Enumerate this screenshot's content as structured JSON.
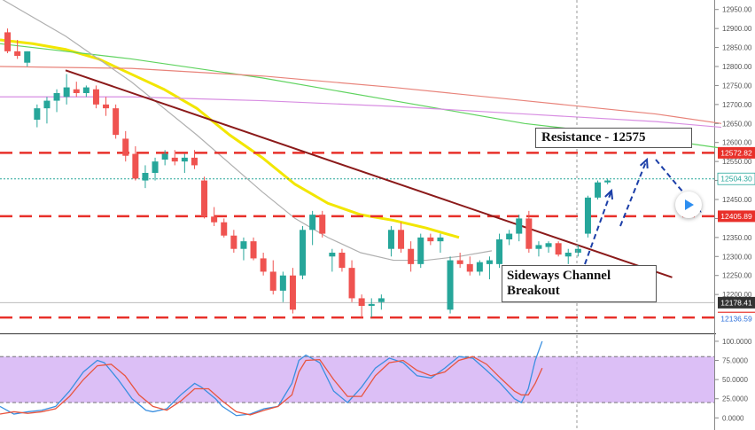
{
  "chart_data": [
    {
      "type": "candlestick",
      "title": "",
      "ylim": [
        12100,
        12975
      ],
      "y_ticks": [
        12950,
        12900,
        12850,
        12800,
        12750,
        12700,
        12650,
        12600,
        12550,
        12500,
        12450,
        12400,
        12350,
        12300,
        12250,
        12200
      ],
      "y_tick_labels": [
        "12950.00",
        "12900.00",
        "12850.00",
        "12800.00",
        "12750.00",
        "12700.00",
        "12650.00",
        "12600.00",
        "12550.00",
        "12500.00",
        "12450.00",
        "12400.00",
        "12350.00",
        "12300.00",
        "12250.00",
        "12200.00"
      ],
      "candles": [
        [
          12890,
          12900,
          12835,
          12840
        ],
        [
          12840,
          12870,
          12820,
          12828
        ],
        [
          12810,
          12840,
          12800,
          12840
        ],
        [
          12660,
          12700,
          12640,
          12690
        ],
        [
          12690,
          12720,
          12650,
          12710
        ],
        [
          12710,
          12740,
          12680,
          12730
        ],
        [
          12720,
          12780,
          12700,
          12745
        ],
        [
          12740,
          12760,
          12720,
          12730
        ],
        [
          12730,
          12750,
          12720,
          12745
        ],
        [
          12740,
          12750,
          12690,
          12700
        ],
        [
          12700,
          12720,
          12670,
          12690
        ],
        [
          12690,
          12700,
          12610,
          12620
        ],
        [
          12610,
          12630,
          12550,
          12565
        ],
        [
          12570,
          12590,
          12500,
          12505
        ],
        [
          12500,
          12540,
          12480,
          12520
        ],
        [
          12520,
          12560,
          12500,
          12550
        ],
        [
          12555,
          12580,
          12540,
          12570
        ],
        [
          12560,
          12580,
          12540,
          12550
        ],
        [
          12550,
          12570,
          12520,
          12560
        ],
        [
          12560,
          12580,
          12530,
          12540
        ],
        [
          12500,
          12510,
          12400,
          12405
        ],
        [
          12405,
          12430,
          12380,
          12390
        ],
        [
          12390,
          12400,
          12350,
          12355
        ],
        [
          12355,
          12370,
          12310,
          12320
        ],
        [
          12320,
          12350,
          12290,
          12340
        ],
        [
          12340,
          12350,
          12290,
          12295
        ],
        [
          12295,
          12310,
          12250,
          12260
        ],
        [
          12260,
          12290,
          12200,
          12210
        ],
        [
          12210,
          12260,
          12180,
          12250
        ],
        [
          12250,
          12270,
          12150,
          12160
        ],
        [
          12250,
          12380,
          12240,
          12370
        ],
        [
          12370,
          12420,
          12330,
          12410
        ],
        [
          12410,
          12420,
          12350,
          12360
        ],
        [
          12300,
          12320,
          12260,
          12310
        ],
        [
          12310,
          12320,
          12260,
          12270
        ],
        [
          12270,
          12290,
          12180,
          12190
        ],
        [
          12190,
          12200,
          12140,
          12170
        ],
        [
          12170,
          12190,
          12140,
          12175
        ],
        [
          12180,
          12200,
          12160,
          12190
        ],
        [
          12320,
          12380,
          12300,
          12370
        ],
        [
          12370,
          12390,
          12310,
          12320
        ],
        [
          12320,
          12340,
          12260,
          12280
        ],
        [
          12280,
          12360,
          12270,
          12350
        ],
        [
          12350,
          12360,
          12330,
          12340
        ],
        [
          12340,
          12360,
          12310,
          12350
        ],
        [
          12160,
          12300,
          12150,
          12290
        ],
        [
          12290,
          12310,
          12270,
          12280
        ],
        [
          12280,
          12300,
          12250,
          12260
        ],
        [
          12260,
          12290,
          12250,
          12285
        ],
        [
          12280,
          12300,
          12240,
          12290
        ],
        [
          12280,
          12360,
          12270,
          12345
        ],
        [
          12345,
          12370,
          12330,
          12360
        ],
        [
          12360,
          12410,
          12340,
          12400
        ],
        [
          12400,
          12420,
          12310,
          12320
        ],
        [
          12320,
          12340,
          12300,
          12330
        ],
        [
          12325,
          12340,
          12310,
          12335
        ],
        [
          12335,
          12340,
          12300,
          12305
        ],
        [
          12300,
          12320,
          12280,
          12310
        ],
        [
          12310,
          12330,
          12300,
          12320
        ],
        [
          12360,
          12460,
          12350,
          12455
        ],
        [
          12455,
          12500,
          12450,
          12495
        ],
        [
          12495,
          12505,
          12490,
          12500
        ]
      ],
      "moving_averages": [
        {
          "color": "#f2e600",
          "values": [
            [
              0,
              12870
            ],
            [
              10,
              12860
            ],
            [
              20,
              12845
            ],
            [
              30,
              12820
            ],
            [
              40,
              12780
            ],
            [
              50,
              12740
            ],
            [
              60,
              12690
            ],
            [
              70,
              12620
            ],
            [
              80,
              12560
            ],
            [
              90,
              12490
            ],
            [
              100,
              12440
            ],
            [
              110,
              12410
            ],
            [
              120,
              12395
            ],
            [
              130,
              12375
            ],
            [
              140,
              12350
            ]
          ]
        },
        {
          "color": "#5fd35f",
          "values": [
            [
              0,
              12860
            ],
            [
              40,
              12820
            ],
            [
              80,
              12770
            ],
            [
              120,
              12710
            ],
            [
              160,
              12650
            ],
            [
              200,
              12610
            ],
            [
              220,
              12585
            ]
          ]
        },
        {
          "color": "#e8837a",
          "values": [
            [
              0,
              12800
            ],
            [
              40,
              12795
            ],
            [
              80,
              12775
            ],
            [
              120,
              12745
            ],
            [
              160,
              12710
            ],
            [
              200,
              12675
            ],
            [
              220,
              12650
            ]
          ]
        },
        {
          "color": "#d88ee2",
          "values": [
            [
              0,
              12720
            ],
            [
              40,
              12720
            ],
            [
              80,
              12710
            ],
            [
              120,
              12695
            ],
            [
              160,
              12675
            ],
            [
              200,
              12655
            ],
            [
              220,
              12640
            ]
          ]
        },
        {
          "color": "#b0b0b0",
          "values": [
            [
              0,
              12980
            ],
            [
              20,
              12880
            ],
            [
              40,
              12760
            ],
            [
              60,
              12620
            ],
            [
              80,
              12470
            ],
            [
              90,
              12400
            ],
            [
              100,
              12350
            ],
            [
              110,
              12310
            ],
            [
              120,
              12290
            ],
            [
              130,
              12290
            ],
            [
              140,
              12300
            ],
            [
              150,
              12315
            ]
          ]
        }
      ],
      "horizontal_levels": [
        {
          "value": 12572.82,
          "label": "12572.82",
          "color": "#e8302a",
          "style": "dashed"
        },
        {
          "value": 12504.3,
          "label": "12504.30",
          "color": "#26a69a",
          "style": "dotted"
        },
        {
          "value": 12405.89,
          "label": "12405.89",
          "color": "#e8302a",
          "style": "dashed"
        },
        {
          "value": 12178.41,
          "label": "12178.41",
          "color": "#444444",
          "style": "thin"
        },
        {
          "value": 12139.35,
          "label": "12139.35",
          "color": "#e8302a",
          "style": "dashed"
        },
        {
          "value": 12136.59,
          "label": "12136.59",
          "color": "#2a6fdb",
          "style": "label-only"
        }
      ],
      "trend_line": {
        "color": "#8b1a1a",
        "from": [
          20,
          12790
        ],
        "to": [
          205,
          12245
        ]
      },
      "annotations": [
        "Resistance - 12575",
        "Sideways Channel Breakout"
      ]
    },
    {
      "type": "line",
      "title": "",
      "ylim": [
        -10,
        108
      ],
      "y_ticks": [
        100,
        75,
        50,
        25,
        0
      ],
      "y_tick_labels": [
        "100.0000",
        "75.0000",
        "50.0000",
        "25.0000",
        "0.0000"
      ],
      "band": [
        20,
        80
      ],
      "series": [
        {
          "color": "#3a8fe0",
          "values": [
            [
              0,
              15
            ],
            [
              4,
              5
            ],
            [
              8,
              8
            ],
            [
              12,
              10
            ],
            [
              16,
              15
            ],
            [
              20,
              35
            ],
            [
              24,
              60
            ],
            [
              28,
              75
            ],
            [
              30,
              72
            ],
            [
              34,
              50
            ],
            [
              38,
              25
            ],
            [
              42,
              10
            ],
            [
              44,
              8
            ],
            [
              48,
              12
            ],
            [
              52,
              30
            ],
            [
              56,
              45
            ],
            [
              58,
              40
            ],
            [
              62,
              25
            ],
            [
              64,
              15
            ],
            [
              68,
              3
            ],
            [
              72,
              5
            ],
            [
              76,
              12
            ],
            [
              80,
              15
            ],
            [
              84,
              45
            ],
            [
              86,
              75
            ],
            [
              88,
              82
            ],
            [
              92,
              72
            ],
            [
              96,
              35
            ],
            [
              100,
              20
            ],
            [
              104,
              40
            ],
            [
              108,
              65
            ],
            [
              112,
              78
            ],
            [
              116,
              72
            ],
            [
              120,
              55
            ],
            [
              124,
              52
            ],
            [
              128,
              65
            ],
            [
              132,
              80
            ],
            [
              136,
              78
            ],
            [
              140,
              62
            ],
            [
              144,
              45
            ],
            [
              148,
              25
            ],
            [
              150,
              20
            ],
            [
              152,
              38
            ],
            [
              154,
              75
            ],
            [
              156,
              100
            ]
          ]
        },
        {
          "color": "#e8553f",
          "values": [
            [
              0,
              5
            ],
            [
              4,
              8
            ],
            [
              8,
              6
            ],
            [
              12,
              8
            ],
            [
              16,
              12
            ],
            [
              20,
              28
            ],
            [
              24,
              50
            ],
            [
              28,
              68
            ],
            [
              32,
              70
            ],
            [
              36,
              55
            ],
            [
              40,
              30
            ],
            [
              44,
              15
            ],
            [
              48,
              10
            ],
            [
              52,
              22
            ],
            [
              56,
              38
            ],
            [
              60,
              38
            ],
            [
              64,
              22
            ],
            [
              68,
              8
            ],
            [
              72,
              4
            ],
            [
              76,
              10
            ],
            [
              80,
              15
            ],
            [
              84,
              30
            ],
            [
              86,
              60
            ],
            [
              88,
              75
            ],
            [
              92,
              76
            ],
            [
              96,
              50
            ],
            [
              100,
              28
            ],
            [
              104,
              28
            ],
            [
              108,
              55
            ],
            [
              112,
              72
            ],
            [
              116,
              75
            ],
            [
              120,
              62
            ],
            [
              124,
              55
            ],
            [
              128,
              60
            ],
            [
              132,
              75
            ],
            [
              136,
              80
            ],
            [
              140,
              70
            ],
            [
              144,
              52
            ],
            [
              148,
              35
            ],
            [
              150,
              30
            ],
            [
              152,
              30
            ],
            [
              154,
              45
            ],
            [
              156,
              65
            ]
          ]
        }
      ]
    }
  ],
  "labels": {
    "resistance": "Resistance - 12575",
    "sideways_line1": "Sideways Channel",
    "sideways_line2": "Breakout"
  },
  "colors": {
    "bull": "#26a69a",
    "bear": "#ef5350",
    "resistance_line": "#e8302a",
    "trend_line": "#8b1a1a",
    "arrow": "#1c3fa8",
    "stoch_band": "#d6b4f5"
  },
  "icons": {
    "play": "play-icon"
  }
}
